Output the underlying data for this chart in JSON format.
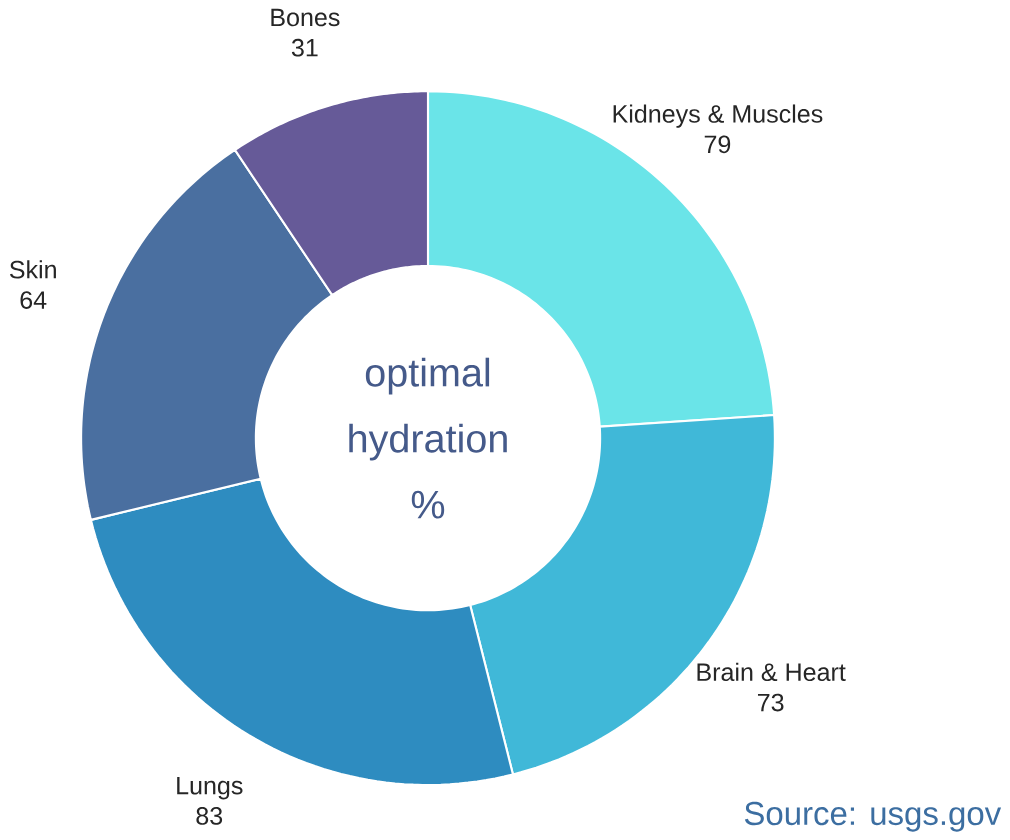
{
  "chart_data": {
    "type": "donut",
    "categories": [
      "Kidneys & Muscles",
      "Brain & Heart",
      "Lungs",
      "Skin",
      "Bones"
    ],
    "values": [
      79,
      73,
      83,
      64,
      31
    ],
    "colors": [
      "#6ae4e8",
      "#40b8d8",
      "#2e8cc0",
      "#4a6fa0",
      "#665a98"
    ],
    "data_labels": true,
    "annotations": [
      "optimal hydration %",
      "Source: usgs.gov"
    ]
  }
}
